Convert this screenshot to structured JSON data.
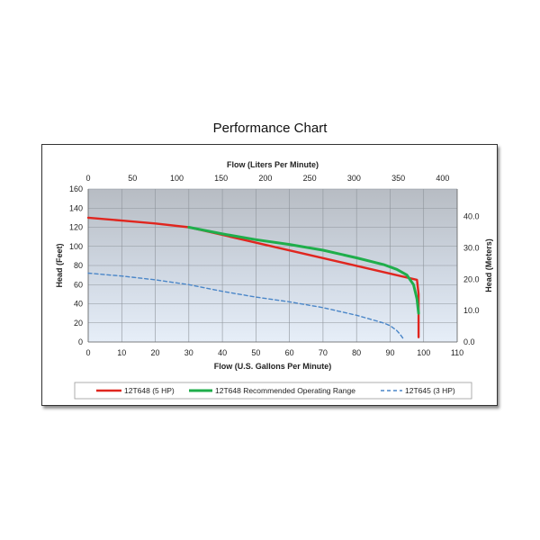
{
  "page_title": "Performance Chart",
  "colors": {
    "red": "#e0261f",
    "green": "#1fae4b",
    "blue": "#4a86c8"
  },
  "chart_data": {
    "type": "line",
    "title": "",
    "xlabel": "Flow (U.S. Gallons Per Minute)",
    "x2label": "Flow (Liters Per Minute)",
    "ylabel": "Head (Feet)",
    "y2label": "Head (Meters)",
    "xlim": [
      0,
      110
    ],
    "x2lim": [
      0,
      416.4
    ],
    "ylim": [
      0,
      160
    ],
    "y2lim": [
      0,
      48.77
    ],
    "xticks": [
      0,
      10,
      20,
      30,
      40,
      50,
      60,
      70,
      80,
      90,
      100,
      110
    ],
    "x2ticks": [
      0,
      50,
      100,
      150,
      200,
      250,
      300,
      350,
      400
    ],
    "yticks": [
      0,
      20,
      40,
      60,
      80,
      100,
      120,
      140,
      160
    ],
    "y2ticks": [
      0.0,
      10.0,
      20.0,
      30.0,
      40.0
    ],
    "y2tick_labels": [
      "0.0",
      "10.0",
      "20.0",
      "30.0",
      "40.0"
    ],
    "grid": true,
    "legend": "bottom",
    "series": [
      {
        "name": "12T648 (5 HP)",
        "color": "#e0261f",
        "style": "solid",
        "x": [
          0,
          10,
          20,
          30,
          40,
          98,
          98.5,
          98.5,
          98.5
        ],
        "y": [
          130,
          127,
          124,
          120,
          112,
          65,
          50,
          20,
          5
        ]
      },
      {
        "name": "12T648 Recommended Operating Range",
        "color": "#1fae4b",
        "style": "solid",
        "x": [
          30,
          40,
          50,
          60,
          70,
          80,
          88,
          92,
          95,
          97,
          98,
          98.5
        ],
        "y": [
          120,
          113,
          107,
          102,
          96,
          88,
          81,
          76,
          70,
          60,
          45,
          30
        ]
      },
      {
        "name": "12T645 (3 HP)",
        "color": "#4a86c8",
        "style": "dashed",
        "x": [
          0,
          10,
          20,
          30,
          40,
          50,
          60,
          70,
          80,
          88,
          90,
          92,
          93,
          94
        ],
        "y": [
          72,
          69,
          65,
          60,
          53,
          47,
          42,
          36,
          28,
          20,
          17,
          12,
          8,
          3
        ]
      }
    ]
  }
}
